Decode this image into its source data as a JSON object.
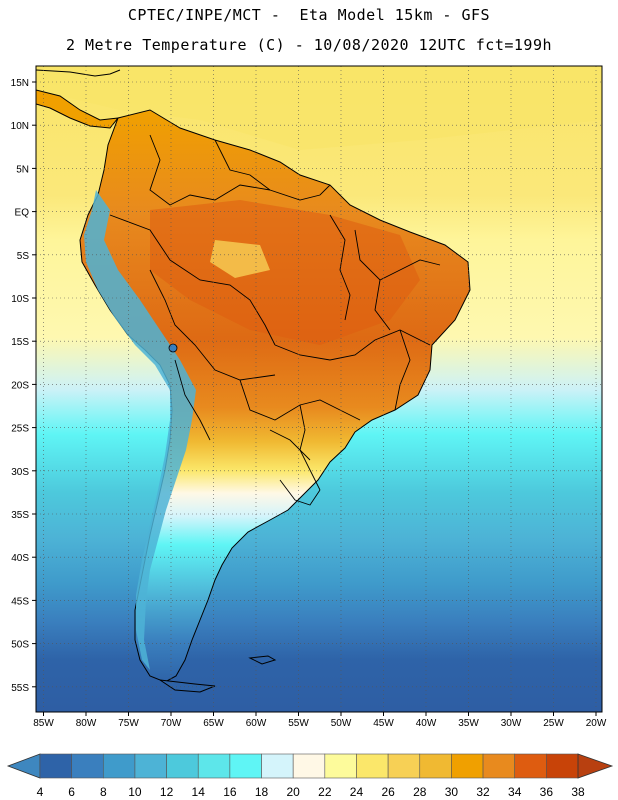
{
  "header": {
    "line1": "CPTEC/INPE/MCT -  Eta Model 15km - GFS",
    "line2": "2 Metre Temperature (C) - 10/08/2020 12UTC fct=199h"
  },
  "map": {
    "lat_labels": [
      "15N",
      "10N",
      "5N",
      "EQ",
      "5S",
      "10S",
      "15S",
      "20S",
      "25S",
      "30S",
      "35S",
      "40S",
      "45S",
      "50S",
      "55S"
    ],
    "lon_labels": [
      "85W",
      "80W",
      "75W",
      "70W",
      "65W",
      "60W",
      "55W",
      "50W",
      "45W",
      "40W",
      "35W",
      "30W",
      "25W",
      "20W"
    ],
    "colors": {
      "ocean_warm": "#f9e568",
      "ocean_mid": "#fef59a",
      "ocean_cool": "#5de6ea",
      "ocean_cold": "#2e63a8",
      "border": "#000000"
    }
  },
  "colorbar": {
    "labels": [
      "4",
      "6",
      "8",
      "10",
      "12",
      "14",
      "16",
      "18",
      "20",
      "22",
      "24",
      "26",
      "28",
      "30",
      "32",
      "34",
      "36",
      "38"
    ],
    "colors": [
      "#3e87bf",
      "#2e63a8",
      "#3a7fbe",
      "#3f9bcb",
      "#4db3d6",
      "#4dc9dc",
      "#5de6ea",
      "#5ff5f5",
      "#d4f4fb",
      "#fff8e6",
      "#fdfb9b",
      "#fbe76a",
      "#f7d055",
      "#f0b932",
      "#f0a000",
      "#e88a1e",
      "#de5c10",
      "#c84308",
      "#b84010"
    ]
  }
}
